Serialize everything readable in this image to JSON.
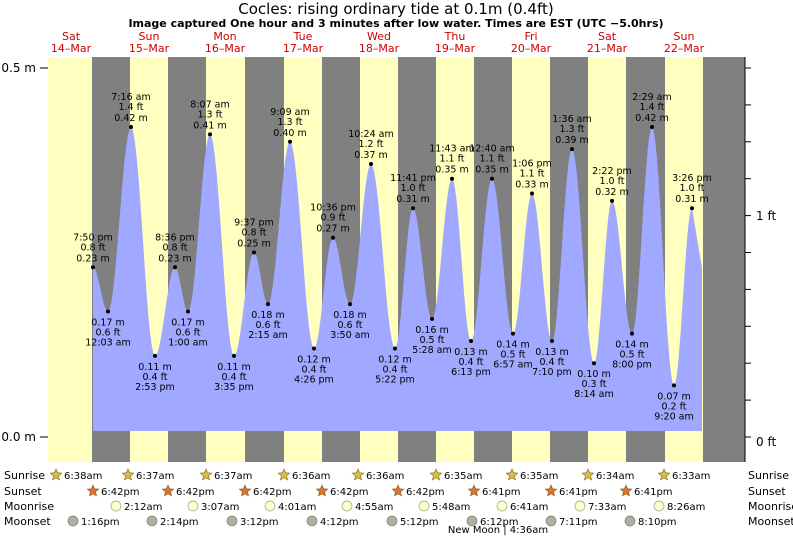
{
  "title": "Cocles: rising  ordinary tide at 0.1m (0.4ft)",
  "subtitle": "Image captured One hour and 3 minutes after low water. Times are EST (UTC −5.0hrs)",
  "days": [
    {
      "dow": "Sat",
      "date": "14–Mar"
    },
    {
      "dow": "Sun",
      "date": "15–Mar"
    },
    {
      "dow": "Mon",
      "date": "16–Mar"
    },
    {
      "dow": "Tue",
      "date": "17–Mar"
    },
    {
      "dow": "Wed",
      "date": "18–Mar"
    },
    {
      "dow": "Thu",
      "date": "19–Mar"
    },
    {
      "dow": "Fri",
      "date": "20–Mar"
    },
    {
      "dow": "Sat",
      "date": "21–Mar"
    },
    {
      "dow": "Sun",
      "date": "22–Mar"
    }
  ],
  "axes": {
    "left_ticks": [
      "0.5 m",
      "0.0 m"
    ],
    "right_ticks": [
      "1 ft",
      "0 ft"
    ]
  },
  "colors": {
    "day": "#ffffc0",
    "night": "#808080",
    "water": "#a0a8ff",
    "day_label": "#cc0000",
    "sunrise_star": "#d8c040",
    "sunset_star": "#e07030",
    "moonrise": "#ffffc8",
    "moonset": "#b0b0a0"
  },
  "chart_data": {
    "type": "area",
    "title": "Cocles: rising  ordinary tide at 0.1m (0.4ft)",
    "ylim_m": [
      0.0,
      0.5
    ],
    "series": [
      {
        "values": [
          {
            "time": "7:50 pm",
            "ft": "0.8 ft",
            "m": 0.23,
            "mlabel": "0.23 m"
          },
          {
            "time": "12:03 am",
            "ft": "0.6 ft",
            "m": 0.17,
            "mlabel": "0.17 m"
          },
          {
            "time": "7:16 am",
            "ft": "1.4 ft",
            "m": 0.42,
            "mlabel": "0.42 m"
          },
          {
            "time": "2:53 pm",
            "ft": "0.4 ft",
            "m": 0.11,
            "mlabel": "0.11 m"
          },
          {
            "time": "8:36 pm",
            "ft": "0.8 ft",
            "m": 0.23,
            "mlabel": "0.23 m"
          },
          {
            "time": "1:00 am",
            "ft": "0.6 ft",
            "m": 0.17,
            "mlabel": "0.17 m"
          },
          {
            "time": "8:07 am",
            "ft": "1.3 ft",
            "m": 0.41,
            "mlabel": "0.41 m"
          },
          {
            "time": "3:35 pm",
            "ft": "0.4 ft",
            "m": 0.11,
            "mlabel": "0.11 m"
          },
          {
            "time": "9:37 pm",
            "ft": "0.8 ft",
            "m": 0.25,
            "mlabel": "0.25 m"
          },
          {
            "time": "2:15 am",
            "ft": "0.6 ft",
            "m": 0.18,
            "mlabel": "0.18 m"
          },
          {
            "time": "9:09 am",
            "ft": "1.3 ft",
            "m": 0.4,
            "mlabel": "0.40 m"
          },
          {
            "time": "4:26 pm",
            "ft": "0.4 ft",
            "m": 0.12,
            "mlabel": "0.12 m"
          },
          {
            "time": "10:36 pm",
            "ft": "0.9 ft",
            "m": 0.27,
            "mlabel": "0.27 m"
          },
          {
            "time": "3:50 am",
            "ft": "0.6 ft",
            "m": 0.18,
            "mlabel": "0.18 m"
          },
          {
            "time": "10:24 am",
            "ft": "1.2 ft",
            "m": 0.37,
            "mlabel": "0.37 m"
          },
          {
            "time": "5:22 pm",
            "ft": "0.4 ft",
            "m": 0.12,
            "mlabel": "0.12 m"
          },
          {
            "time": "11:41 pm",
            "ft": "1.0 ft",
            "m": 0.31,
            "mlabel": "0.31 m"
          },
          {
            "time": "5:28 am",
            "ft": "0.5 ft",
            "m": 0.16,
            "mlabel": "0.16 m"
          },
          {
            "time": "11:43 am",
            "ft": "1.1 ft",
            "m": 0.35,
            "mlabel": "0.35 m"
          },
          {
            "time": "6:13 pm",
            "ft": "0.4 ft",
            "m": 0.13,
            "mlabel": "0.13 m"
          },
          {
            "time": "12:40 am",
            "ft": "1.1 ft",
            "m": 0.35,
            "mlabel": "0.35 m"
          },
          {
            "time": "6:57 am",
            "ft": "0.5 ft",
            "m": 0.14,
            "mlabel": "0.14 m"
          },
          {
            "time": "1:06 pm",
            "ft": "1.1 ft",
            "m": 0.33,
            "mlabel": "0.33 m"
          },
          {
            "time": "7:10 pm",
            "ft": "0.4 ft",
            "m": 0.13,
            "mlabel": "0.13 m"
          },
          {
            "time": "1:36 am",
            "ft": "1.3 ft",
            "m": 0.39,
            "mlabel": "0.39 m"
          },
          {
            "time": "8:14 am",
            "ft": "0.3 ft",
            "m": 0.1,
            "mlabel": "0.10 m"
          },
          {
            "time": "2:22 pm",
            "ft": "1.0 ft",
            "m": 0.32,
            "mlabel": "0.32 m"
          },
          {
            "time": "8:00 pm",
            "ft": "0.5 ft",
            "m": 0.14,
            "mlabel": "0.14 m"
          },
          {
            "time": "2:29 am",
            "ft": "1.4 ft",
            "m": 0.42,
            "mlabel": "0.42 m"
          },
          {
            "time": "9:20 am",
            "ft": "0.2 ft",
            "m": 0.07,
            "mlabel": "0.07 m"
          },
          {
            "time": "3:26 pm",
            "ft": "1.0 ft",
            "m": 0.31,
            "mlabel": "0.31 m"
          }
        ]
      }
    ]
  },
  "rows": {
    "sunrise": {
      "label": "Sunrise",
      "times": [
        "6:38am",
        "6:37am",
        "6:37am",
        "6:36am",
        "6:36am",
        "6:35am",
        "6:35am",
        "6:34am",
        "6:33am"
      ]
    },
    "sunset": {
      "label": "Sunset",
      "times": [
        "6:42pm",
        "6:42pm",
        "6:42pm",
        "6:42pm",
        "6:42pm",
        "6:41pm",
        "6:41pm",
        "6:41pm"
      ]
    },
    "moonrise": {
      "label": "Moonrise",
      "times": [
        "2:12am",
        "3:07am",
        "4:01am",
        "4:55am",
        "5:48am",
        "6:41am",
        "7:33am",
        "8:26am"
      ]
    },
    "moonset": {
      "label": "Moonset",
      "times": [
        "1:16pm",
        "2:14pm",
        "3:12pm",
        "4:12pm",
        "5:12pm",
        "6:12pm",
        "7:11pm",
        "8:10pm"
      ]
    },
    "moon_phase": "New Moon | 4:36am"
  }
}
